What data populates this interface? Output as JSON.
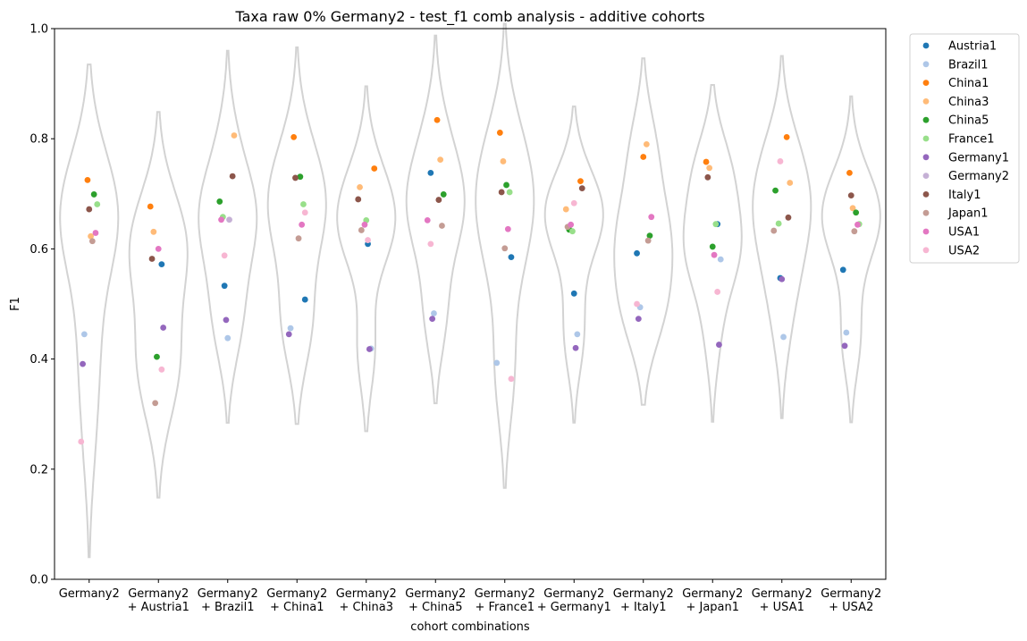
{
  "chart_data": {
    "type": "scatter",
    "title": "Taxa raw 0% Germany2 - test_f1 comb analysis - additive cohorts",
    "xlabel": "cohort combinations",
    "ylabel": "F1",
    "ylim": [
      0,
      1
    ],
    "yticks": [
      "0.0",
      "0.2",
      "0.4",
      "0.6",
      "0.8",
      "1.0"
    ],
    "grid": false,
    "legend_position": "outside-top-right",
    "categories": [
      [
        "Germany2"
      ],
      [
        "Germany2",
        "+ Austria1"
      ],
      [
        "Germany2",
        "+ Brazil1"
      ],
      [
        "Germany2",
        "+ China1"
      ],
      [
        "Germany2",
        "+ China3"
      ],
      [
        "Germany2",
        "+ China5"
      ],
      [
        "Germany2",
        "+ France1"
      ],
      [
        "Germany2",
        "+ Germany1"
      ],
      [
        "Germany2",
        "+ Italy1"
      ],
      [
        "Germany2",
        "+ Japan1"
      ],
      [
        "Germany2",
        "+ USA1"
      ],
      [
        "Germany2",
        "+ USA2"
      ]
    ],
    "violin_color": "#d3d3d3",
    "series": [
      {
        "name": "Austria1",
        "color": "#1f77b4",
        "values": [
          null,
          0.572,
          0.533,
          0.508,
          0.609,
          0.738,
          0.585,
          0.519,
          0.592,
          0.645,
          0.547,
          0.562
        ]
      },
      {
        "name": "Brazil1",
        "color": "#aec7e8",
        "values": [
          0.445,
          null,
          0.438,
          0.456,
          0.419,
          0.483,
          0.393,
          0.445,
          0.494,
          0.581,
          0.44,
          0.448
        ]
      },
      {
        "name": "China1",
        "color": "#ff7f0e",
        "values": [
          0.725,
          0.677,
          null,
          0.803,
          0.746,
          0.834,
          0.811,
          0.723,
          0.767,
          0.758,
          0.803,
          0.738
        ]
      },
      {
        "name": "China3",
        "color": "#ffbb78",
        "values": [
          0.623,
          0.631,
          0.806,
          null,
          0.712,
          0.762,
          0.759,
          0.672,
          0.79,
          0.747,
          0.72,
          0.674
        ]
      },
      {
        "name": "China5",
        "color": "#2ca02c",
        "values": [
          0.699,
          0.404,
          0.686,
          0.731,
          null,
          0.699,
          0.716,
          0.635,
          0.624,
          0.604,
          0.706,
          0.666
        ]
      },
      {
        "name": "France1",
        "color": "#98df8a",
        "values": [
          0.681,
          null,
          0.658,
          0.681,
          0.652,
          null,
          0.703,
          0.632,
          null,
          0.645,
          0.646,
          0.645
        ]
      },
      {
        "name": "Germany1",
        "color": "#9467bd",
        "values": [
          0.391,
          0.457,
          0.471,
          0.445,
          0.418,
          0.473,
          null,
          0.42,
          0.473,
          0.426,
          0.545,
          0.424
        ]
      },
      {
        "name": "Germany2",
        "color": "#c5b0d5",
        "values": [
          null,
          null,
          0.653,
          null,
          null,
          null,
          null,
          null,
          null,
          null,
          null,
          null
        ]
      },
      {
        "name": "Italy1",
        "color": "#8c564b",
        "values": [
          0.672,
          0.582,
          0.732,
          0.729,
          0.69,
          0.689,
          0.703,
          0.71,
          null,
          0.73,
          0.657,
          0.697
        ]
      },
      {
        "name": "Japan1",
        "color": "#c49c94",
        "values": [
          0.614,
          0.32,
          null,
          0.619,
          0.634,
          0.642,
          0.601,
          0.64,
          0.615,
          null,
          0.633,
          0.632
        ]
      },
      {
        "name": "USA1",
        "color": "#e377c2",
        "values": [
          0.629,
          0.6,
          0.653,
          0.644,
          0.644,
          0.652,
          0.636,
          0.644,
          0.658,
          0.589,
          null,
          0.644
        ]
      },
      {
        "name": "USA2",
        "color": "#f7b6d2",
        "values": [
          0.25,
          0.381,
          0.588,
          0.666,
          0.616,
          0.609,
          0.364,
          0.683,
          0.5,
          0.522,
          0.759,
          null
        ]
      }
    ]
  }
}
